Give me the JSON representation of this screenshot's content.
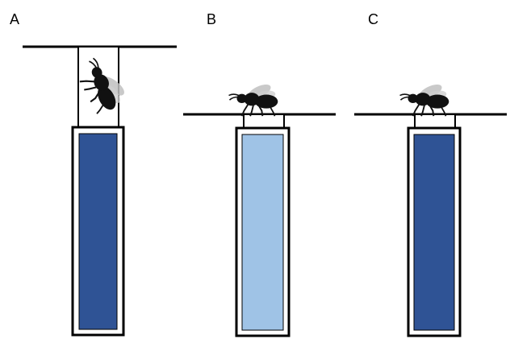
{
  "panels": [
    {
      "label": "A",
      "liquid": "dark"
    },
    {
      "label": "B",
      "liquid": "light"
    },
    {
      "label": "C",
      "liquid": "dark"
    }
  ],
  "colors": {
    "liquid_dark": "#2f5395",
    "liquid_light": "#9fc3e6",
    "outline": "#000000",
    "bee": "#111111",
    "wing": "#bfbfbf"
  },
  "icons": {
    "insect": "bee-silhouette-icon"
  }
}
